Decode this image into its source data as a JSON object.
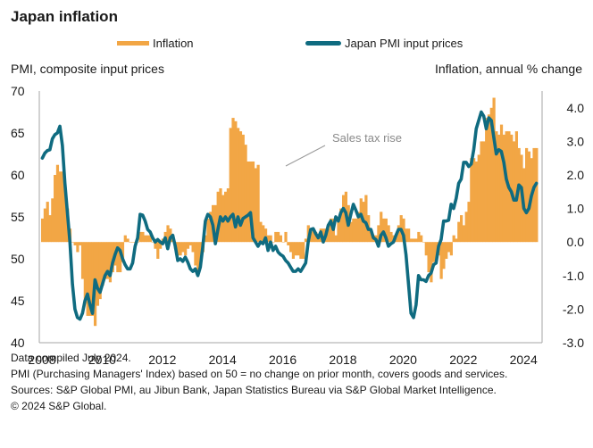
{
  "title": "Japan inflation",
  "legend": [
    {
      "label": "Inflation",
      "color": "#f2a645",
      "kind": "bar"
    },
    {
      "label": "Japan PMI input prices",
      "color": "#0f6b80",
      "kind": "line"
    }
  ],
  "left_axis_title": "PMI, composite input prices",
  "right_axis_title": "Inflation, annual % change",
  "footer": {
    "line1": "Data compiled July 2024.",
    "line2": "PMI (Purchasing Managers' Index) based on 50 = no change on prior month, covers goods and services.",
    "line3": "Sources: S&P Global PMI, au Jibun Bank, Japan Statistics Bureau via S&P Global Market Intelligence.",
    "line4": "© 2024 S&P Global."
  },
  "chart_data": {
    "type": "bar+line",
    "title": "Japan inflation",
    "xlabel": "",
    "ylabel_left": "PMI, composite input prices",
    "ylabel_right": "Inflation, annual % change",
    "x_start": "2008-01",
    "x_end": "2024-06",
    "x_ticks": [
      "2008",
      "2010",
      "2012",
      "2014",
      "2016",
      "2018",
      "2020",
      "2022",
      "2024"
    ],
    "ylim_left": [
      40,
      70
    ],
    "yticks_left": [
      "70",
      "65",
      "60",
      "55",
      "50",
      "45",
      "40"
    ],
    "ylim_right": [
      -3.0,
      4.5
    ],
    "yticks_right": [
      "4.0",
      "3.0",
      "2.0",
      "1.0",
      "0.0",
      "-1.0",
      "-2.0",
      "-3.0"
    ],
    "grid": false,
    "legend_position": "top",
    "annotations": [
      {
        "text": "Sales tax rise",
        "refers_to": "2014-04"
      }
    ],
    "series": [
      {
        "name": "Inflation",
        "type": "bar",
        "axis": "right",
        "frequency": "monthly",
        "values": [
          0.7,
          1.0,
          1.2,
          0.8,
          1.3,
          2.0,
          2.3,
          2.1,
          2.1,
          1.7,
          1.0,
          0.4,
          0.0,
          -0.1,
          -0.3,
          -0.1,
          -1.1,
          -1.8,
          -2.2,
          -2.2,
          -2.2,
          -2.5,
          -1.9,
          -1.7,
          -1.3,
          -1.1,
          -1.1,
          -1.2,
          -0.9,
          -0.7,
          -0.9,
          -0.9,
          -0.6,
          0.2,
          0.1,
          0.0,
          0.0,
          0.0,
          0.0,
          0.3,
          0.3,
          0.2,
          0.2,
          0.2,
          0.0,
          -0.2,
          -0.5,
          -0.2,
          0.1,
          0.3,
          0.5,
          0.4,
          0.2,
          -0.2,
          -0.4,
          -0.4,
          -0.3,
          -0.4,
          -0.2,
          -0.1,
          -0.3,
          -0.7,
          -0.9,
          -0.7,
          -0.3,
          0.2,
          0.7,
          0.9,
          1.1,
          1.1,
          1.5,
          1.6,
          1.4,
          1.5,
          1.6,
          3.4,
          3.7,
          3.6,
          3.4,
          3.3,
          3.2,
          2.9,
          2.4,
          2.4,
          2.4,
          2.2,
          2.3,
          0.6,
          0.5,
          0.4,
          0.2,
          0.2,
          0.0,
          0.3,
          0.3,
          0.2,
          0.0,
          0.3,
          -0.1,
          -0.3,
          -0.5,
          -0.4,
          -0.4,
          -0.5,
          -0.5,
          0.1,
          0.5,
          0.3,
          0.4,
          0.3,
          0.2,
          0.4,
          0.4,
          0.4,
          0.4,
          0.7,
          0.7,
          0.2,
          0.6,
          1.0,
          1.4,
          1.5,
          1.1,
          0.6,
          0.7,
          0.7,
          0.9,
          1.3,
          1.2,
          1.4,
          0.8,
          0.3,
          0.2,
          0.2,
          0.5,
          0.9,
          0.7,
          0.7,
          0.5,
          0.3,
          0.2,
          0.2,
          0.5,
          0.8,
          0.7,
          0.4,
          0.4,
          0.1,
          0.1,
          0.1,
          0.3,
          0.2,
          0.0,
          -0.4,
          -0.9,
          -1.2,
          -0.6,
          -0.5,
          -0.4,
          -1.1,
          -0.8,
          -0.5,
          -0.3,
          -0.4,
          0.2,
          0.1,
          0.6,
          0.8,
          0.5,
          0.9,
          1.2,
          2.5,
          2.5,
          2.4,
          2.6,
          3.0,
          3.0,
          3.7,
          3.8,
          4.0,
          4.3,
          3.3,
          3.2,
          3.5,
          3.2,
          3.3,
          3.3,
          3.2,
          3.0,
          3.3,
          2.8,
          2.6,
          2.2,
          2.8,
          2.7,
          2.5,
          2.8,
          2.8
        ]
      },
      {
        "name": "Japan PMI input prices",
        "type": "line",
        "axis": "left",
        "frequency": "monthly",
        "values": [
          62.0,
          62.6,
          62.9,
          63.0,
          64.3,
          64.8,
          65.0,
          65.8,
          63.5,
          59.0,
          55.5,
          52.0,
          47.0,
          44.0,
          43.0,
          42.8,
          43.5,
          45.0,
          45.8,
          44.5,
          43.5,
          47.5,
          46.5,
          46.0,
          47.0,
          48.0,
          48.5,
          48.0,
          49.5,
          50.5,
          51.3,
          51.0,
          50.0,
          49.3,
          48.8,
          48.8,
          49.5,
          51.5,
          52.5,
          55.3,
          55.2,
          54.5,
          53.5,
          53.2,
          52.5,
          52.0,
          52.3,
          52.0,
          51.8,
          52.5,
          51.2,
          52.5,
          52.8,
          51.5,
          49.8,
          50.0,
          49.7,
          50.2,
          49.6,
          48.8,
          48.5,
          48.8,
          48.0,
          49.0,
          51.5,
          54.5,
          55.3,
          55.0,
          54.0,
          51.8,
          53.5,
          55.0,
          54.5,
          55.0,
          54.5,
          55.0,
          55.3,
          53.8,
          55.0,
          54.0,
          54.8,
          55.0,
          55.2,
          55.5,
          52.5,
          52.0,
          51.5,
          52.0,
          51.8,
          52.5,
          51.0,
          52.0,
          51.0,
          51.5,
          50.8,
          50.5,
          50.3,
          49.8,
          49.5,
          49.0,
          48.5,
          48.5,
          48.8,
          48.5,
          49.0,
          49.5,
          52.0,
          53.5,
          53.6,
          53.0,
          52.5,
          53.2,
          52.0,
          52.8,
          54.0,
          54.5,
          53.5,
          55.0,
          54.5,
          55.5,
          56.0,
          55.5,
          54.0,
          55.3,
          56.5,
          55.8,
          55.0,
          55.3,
          54.5,
          54.3,
          53.5,
          53.5,
          52.5,
          52.3,
          51.5,
          52.8,
          53.2,
          52.5,
          51.5,
          51.8,
          52.0,
          52.8,
          53.5,
          53.5,
          52.8,
          50.5,
          47.0,
          43.5,
          43.0,
          44.5,
          48.0,
          47.5,
          47.5,
          47.3,
          48.0,
          48.3,
          49.3,
          49.5,
          51.5,
          52.3,
          54.5,
          54.5,
          54.6,
          56.5,
          56.0,
          57.2,
          59.0,
          59.5,
          61.5,
          61.5,
          61.0,
          61.3,
          63.0,
          65.5,
          66.5,
          67.5,
          67.0,
          65.5,
          66.8,
          66.5,
          64.5,
          62.5,
          63.0,
          62.8,
          61.5,
          59.5,
          58.5,
          58.0,
          57.0,
          57.0,
          58.8,
          58.5,
          56.0,
          55.5,
          56.0,
          57.5,
          58.5,
          59.0
        ]
      }
    ]
  }
}
